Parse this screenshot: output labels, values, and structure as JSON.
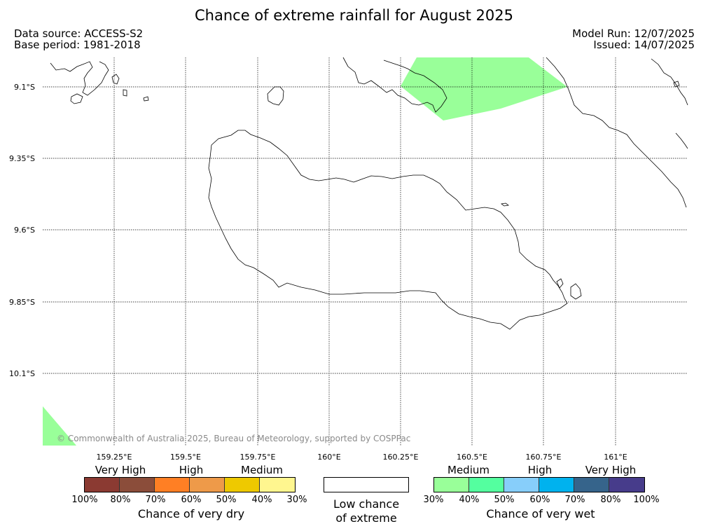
{
  "header": {
    "title": "Chance of extreme rainfall for August 2025",
    "data_source": "Data source: ACCESS-S2",
    "base_period": "Base period: 1981-2018",
    "model_run": "Model Run: 12/07/2025",
    "issued": "Issued: 14/07/2025"
  },
  "map": {
    "lat_labels": [
      "9.1°S",
      "9.35°S",
      "9.6°S",
      "9.85°S",
      "10.1°S"
    ],
    "lon_labels": [
      "159.25°E",
      "159.5°E",
      "159.75°E",
      "160°E",
      "160.25°E",
      "160.5°E",
      "160.75°E",
      "161°E"
    ],
    "wet_highlight_category": "Medium",
    "wet_highlight_color": "#99ff99",
    "copyright": "© Commonwealth of Australia 2025, Bureau of Meteorology, supported by COSPPac"
  },
  "legend": {
    "dry": {
      "categories": [
        "Very High",
        "High",
        "Medium"
      ],
      "colors": [
        "#8b3a32",
        "#8b4d3a",
        "#ff7f24",
        "#ee9a49",
        "#eec900",
        "#fff68f"
      ],
      "ticks": [
        "100%",
        "80%",
        "70%",
        "60%",
        "50%",
        "40%",
        "30%"
      ],
      "caption": "Chance of very dry"
    },
    "low": {
      "line1": "Low chance",
      "line2": "of extreme"
    },
    "wet": {
      "categories": [
        "Medium",
        "High",
        "Very High"
      ],
      "colors": [
        "#99ff99",
        "#54ff9f",
        "#87cefa",
        "#00b2ee",
        "#36648b",
        "#473c8b"
      ],
      "ticks": [
        "30%",
        "40%",
        "50%",
        "60%",
        "70%",
        "80%",
        "100%"
      ],
      "caption": "Chance of very wet"
    }
  }
}
